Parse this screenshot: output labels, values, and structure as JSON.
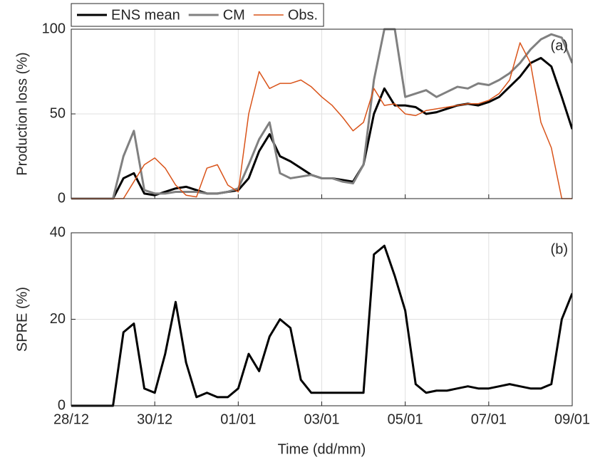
{
  "chart_data": [
    {
      "type": "line",
      "annotation": "(a)",
      "ylabel": "Production loss (%)",
      "x": [
        0,
        0.25,
        0.5,
        0.75,
        1,
        1.25,
        1.5,
        1.75,
        2,
        2.25,
        2.5,
        2.75,
        3,
        3.25,
        3.5,
        3.75,
        4,
        4.25,
        4.5,
        4.75,
        5,
        5.25,
        5.5,
        5.75,
        6,
        6.25,
        6.5,
        6.75,
        7,
        7.25,
        7.5,
        7.75,
        8,
        8.25,
        8.5,
        8.75,
        9,
        9.25,
        9.5,
        9.75,
        10,
        10.25,
        10.5,
        10.75,
        11,
        11.25,
        11.5,
        11.75,
        12
      ],
      "series": [
        {
          "name": "ENS mean",
          "color": "#000000",
          "width": 3,
          "values": [
            0,
            0,
            0,
            0,
            0,
            12,
            15,
            3,
            2,
            4,
            6,
            7,
            5,
            3,
            3,
            4,
            5,
            12,
            28,
            38,
            25,
            22,
            18,
            14,
            12,
            12,
            11,
            10,
            20,
            50,
            65,
            55,
            55,
            54,
            50,
            51,
            53,
            55,
            56,
            55,
            57,
            60,
            66,
            72,
            80,
            83,
            78,
            60,
            41
          ]
        },
        {
          "name": "CM",
          "color": "#808080",
          "width": 3,
          "values": [
            0,
            0,
            0,
            0,
            0,
            25,
            40,
            5,
            3,
            3,
            4,
            4,
            4,
            3,
            3,
            4,
            6,
            20,
            35,
            45,
            15,
            12,
            13,
            14,
            12,
            12,
            10,
            9,
            20,
            70,
            100,
            100,
            60,
            62,
            64,
            60,
            63,
            66,
            65,
            68,
            67,
            70,
            74,
            80,
            88,
            94,
            97,
            95,
            80
          ]
        },
        {
          "name": "Obs.",
          "color": "#d95319",
          "width": 1.5,
          "values": [
            0,
            0,
            0,
            0,
            0,
            0,
            10,
            20,
            24,
            18,
            8,
            2,
            1,
            18,
            20,
            8,
            4,
            50,
            75,
            65,
            68,
            68,
            70,
            66,
            60,
            55,
            48,
            40,
            45,
            65,
            55,
            56,
            50,
            49,
            52,
            53,
            54,
            55,
            56,
            56,
            58,
            62,
            70,
            92,
            80,
            45,
            30,
            0,
            0
          ]
        }
      ],
      "xlim": [
        0,
        12
      ],
      "xticks": [
        0,
        2,
        4,
        6,
        8,
        10,
        12
      ],
      "ylim": [
        0,
        100
      ],
      "yticks": [
        0,
        50,
        100
      ],
      "grid": true,
      "legend": "top-left"
    },
    {
      "type": "line",
      "annotation": "(b)",
      "ylabel": "SPRE (%)",
      "xlabel": "Time (dd/mm)",
      "x": [
        0,
        0.25,
        0.5,
        0.75,
        1,
        1.25,
        1.5,
        1.75,
        2,
        2.25,
        2.5,
        2.75,
        3,
        3.25,
        3.5,
        3.75,
        4,
        4.25,
        4.5,
        4.75,
        5,
        5.25,
        5.5,
        5.75,
        6,
        6.25,
        6.5,
        6.75,
        7,
        7.25,
        7.5,
        7.75,
        8,
        8.25,
        8.5,
        8.75,
        9,
        9.25,
        9.5,
        9.75,
        10,
        10.25,
        10.5,
        10.75,
        11,
        11.25,
        11.5,
        11.75,
        12
      ],
      "series": [
        {
          "color": "#000000",
          "width": 3,
          "values": [
            0,
            0,
            0,
            0,
            0,
            17,
            19,
            4,
            3,
            12,
            24,
            10,
            2,
            3,
            2,
            2,
            4,
            12,
            8,
            16,
            20,
            18,
            6,
            3,
            3,
            3,
            3,
            3,
            3,
            35,
            37,
            30,
            22,
            5,
            3,
            3.5,
            3.5,
            4,
            4.5,
            4,
            4,
            4.5,
            5,
            4.5,
            4,
            4,
            5,
            20,
            26
          ]
        }
      ],
      "xlim": [
        0,
        12
      ],
      "xticks": [
        {
          "value": 0,
          "label": "28/12"
        },
        {
          "value": 2,
          "label": "30/12"
        },
        {
          "value": 4,
          "label": "01/01"
        },
        {
          "value": 6,
          "label": "03/01"
        },
        {
          "value": 8,
          "label": "05/01"
        },
        {
          "value": 10,
          "label": "07/01"
        },
        {
          "value": 12,
          "label": "09/01"
        }
      ],
      "ylim": [
        0,
        40
      ],
      "yticks": [
        0,
        20,
        40
      ],
      "grid": true
    }
  ]
}
